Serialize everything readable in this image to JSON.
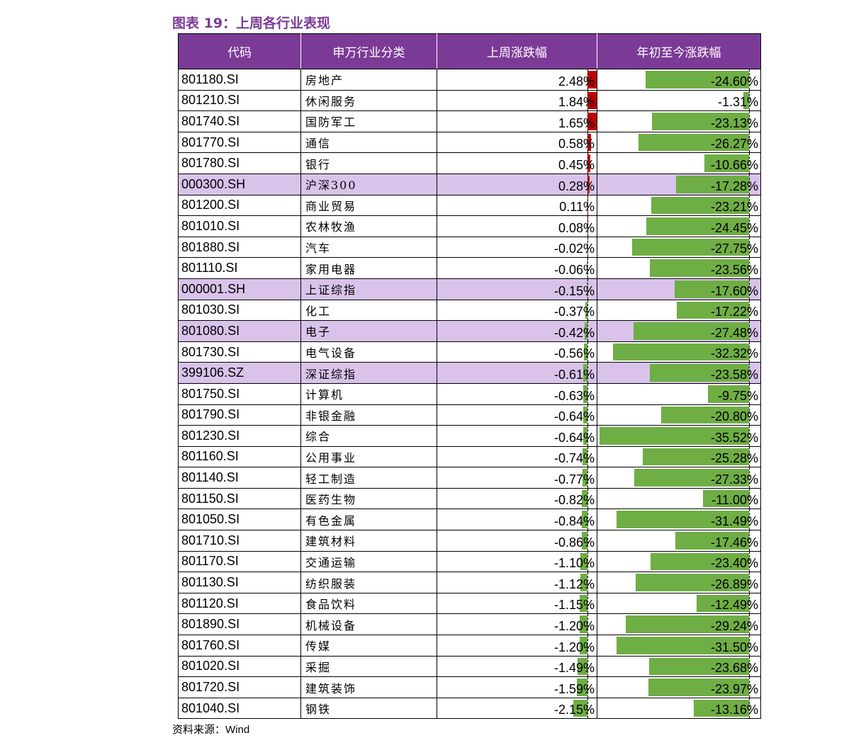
{
  "title": "图表 19：上周各行业表现",
  "headers": [
    "代码",
    "申万行业分类",
    "上周涨跌幅",
    "年初至今涨跌幅"
  ],
  "source": {
    "label": "资料来源：",
    "value": "Wind"
  },
  "colors": {
    "header_bg": "#7b3a96",
    "highlight_row": "#d9c3ea",
    "positive_bar": "#c00000",
    "negative_bar": "#6fae45"
  },
  "rows": [
    {
      "code": "801180.SI",
      "name": "房地产",
      "week": 2.48,
      "ytd": -24.6,
      "week_text": "2.48%",
      "ytd_text": "-24.60%",
      "highlight": false
    },
    {
      "code": "801210.SI",
      "name": "休闲服务",
      "week": 1.84,
      "ytd": -1.31,
      "week_text": "1.84%",
      "ytd_text": "-1.31%",
      "highlight": false
    },
    {
      "code": "801740.SI",
      "name": "国防军工",
      "week": 1.65,
      "ytd": -23.13,
      "week_text": "1.65%",
      "ytd_text": "-23.13%",
      "highlight": false
    },
    {
      "code": "801770.SI",
      "name": "通信",
      "week": 0.58,
      "ytd": -26.27,
      "week_text": "0.58%",
      "ytd_text": "-26.27%",
      "highlight": false
    },
    {
      "code": "801780.SI",
      "name": "银行",
      "week": 0.45,
      "ytd": -10.66,
      "week_text": "0.45%",
      "ytd_text": "-10.66%",
      "highlight": false
    },
    {
      "code": "000300.SH",
      "name": "沪深300",
      "week": 0.28,
      "ytd": -17.28,
      "week_text": "0.28%",
      "ytd_text": "-17.28%",
      "highlight": true
    },
    {
      "code": "801200.SI",
      "name": "商业贸易",
      "week": 0.11,
      "ytd": -23.21,
      "week_text": "0.11%",
      "ytd_text": "-23.21%",
      "highlight": false
    },
    {
      "code": "801010.SI",
      "name": "农林牧渔",
      "week": 0.08,
      "ytd": -24.45,
      "week_text": "0.08%",
      "ytd_text": "-24.45%",
      "highlight": false
    },
    {
      "code": "801880.SI",
      "name": "汽车",
      "week": -0.02,
      "ytd": -27.75,
      "week_text": "-0.02%",
      "ytd_text": "-27.75%",
      "highlight": false
    },
    {
      "code": "801110.SI",
      "name": "家用电器",
      "week": -0.06,
      "ytd": -23.56,
      "week_text": "-0.06%",
      "ytd_text": "-23.56%",
      "highlight": false
    },
    {
      "code": "000001.SH",
      "name": "上证综指",
      "week": -0.15,
      "ytd": -17.6,
      "week_text": "-0.15%",
      "ytd_text": "-17.60%",
      "highlight": true
    },
    {
      "code": "801030.SI",
      "name": "化工",
      "week": -0.37,
      "ytd": -17.22,
      "week_text": "-0.37%",
      "ytd_text": "-17.22%",
      "highlight": false
    },
    {
      "code": "801080.SI",
      "name": "电子",
      "week": -0.42,
      "ytd": -27.48,
      "week_text": "-0.42%",
      "ytd_text": "-27.48%",
      "highlight": true
    },
    {
      "code": "801730.SI",
      "name": "电气设备",
      "week": -0.56,
      "ytd": -32.32,
      "week_text": "-0.56%",
      "ytd_text": "-32.32%",
      "highlight": false
    },
    {
      "code": "399106.SZ",
      "name": "深证综指",
      "week": -0.61,
      "ytd": -23.58,
      "week_text": "-0.61%",
      "ytd_text": "-23.58%",
      "highlight": true
    },
    {
      "code": "801750.SI",
      "name": "计算机",
      "week": -0.63,
      "ytd": -9.75,
      "week_text": "-0.63%",
      "ytd_text": "-9.75%",
      "highlight": false
    },
    {
      "code": "801790.SI",
      "name": "非银金融",
      "week": -0.64,
      "ytd": -20.8,
      "week_text": "-0.64%",
      "ytd_text": "-20.80%",
      "highlight": false
    },
    {
      "code": "801230.SI",
      "name": "综合",
      "week": -0.64,
      "ytd": -35.52,
      "week_text": "-0.64%",
      "ytd_text": "-35.52%",
      "highlight": false
    },
    {
      "code": "801160.SI",
      "name": "公用事业",
      "week": -0.74,
      "ytd": -25.28,
      "week_text": "-0.74%",
      "ytd_text": "-25.28%",
      "highlight": false
    },
    {
      "code": "801140.SI",
      "name": "轻工制造",
      "week": -0.77,
      "ytd": -27.33,
      "week_text": "-0.77%",
      "ytd_text": "-27.33%",
      "highlight": false
    },
    {
      "code": "801150.SI",
      "name": "医药生物",
      "week": -0.82,
      "ytd": -11.0,
      "week_text": "-0.82%",
      "ytd_text": "-11.00%",
      "highlight": false
    },
    {
      "code": "801050.SI",
      "name": "有色金属",
      "week": -0.84,
      "ytd": -31.49,
      "week_text": "-0.84%",
      "ytd_text": "-31.49%",
      "highlight": false
    },
    {
      "code": "801710.SI",
      "name": "建筑材料",
      "week": -0.86,
      "ytd": -17.46,
      "week_text": "-0.86%",
      "ytd_text": "-17.46%",
      "highlight": false
    },
    {
      "code": "801170.SI",
      "name": "交通运输",
      "week": -1.1,
      "ytd": -23.4,
      "week_text": "-1.10%",
      "ytd_text": "-23.40%",
      "highlight": false
    },
    {
      "code": "801130.SI",
      "name": "纺织服装",
      "week": -1.12,
      "ytd": -26.89,
      "week_text": "-1.12%",
      "ytd_text": "-26.89%",
      "highlight": false
    },
    {
      "code": "801120.SI",
      "name": "食品饮料",
      "week": -1.15,
      "ytd": -12.49,
      "week_text": "-1.15%",
      "ytd_text": "-12.49%",
      "highlight": false
    },
    {
      "code": "801890.SI",
      "name": "机械设备",
      "week": -1.2,
      "ytd": -29.24,
      "week_text": "-1.20%",
      "ytd_text": "-29.24%",
      "highlight": false
    },
    {
      "code": "801760.SI",
      "name": "传媒",
      "week": -1.2,
      "ytd": -31.5,
      "week_text": "-1.20%",
      "ytd_text": "-31.50%",
      "highlight": false
    },
    {
      "code": "801020.SI",
      "name": "采掘",
      "week": -1.49,
      "ytd": -23.68,
      "week_text": "-1.49%",
      "ytd_text": "-23.68%",
      "highlight": false
    },
    {
      "code": "801720.SI",
      "name": "建筑装饰",
      "week": -1.59,
      "ytd": -23.97,
      "week_text": "-1.59%",
      "ytd_text": "-23.97%",
      "highlight": false
    },
    {
      "code": "801040.SI",
      "name": "钢铁",
      "week": -2.15,
      "ytd": -13.16,
      "week_text": "-2.15%",
      "ytd_text": "-13.16%",
      "highlight": false
    }
  ]
}
